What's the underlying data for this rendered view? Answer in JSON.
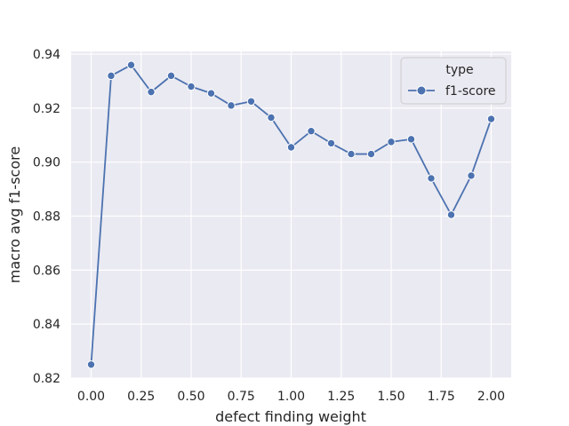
{
  "chart_data": {
    "type": "line",
    "title": "",
    "xlabel": "defect finding weight",
    "ylabel": "macro avg f1-score",
    "xlim": [
      -0.1,
      2.1
    ],
    "ylim": [
      0.82,
      0.941
    ],
    "x_ticks": [
      0.0,
      0.25,
      0.5,
      0.75,
      1.0,
      1.25,
      1.5,
      1.75,
      2.0
    ],
    "x_tick_labels": [
      "0.00",
      "0.25",
      "0.50",
      "0.75",
      "1.00",
      "1.25",
      "1.50",
      "1.75",
      "2.00"
    ],
    "y_ticks": [
      0.82,
      0.84,
      0.86,
      0.88,
      0.9,
      0.92,
      0.94
    ],
    "y_tick_labels": [
      "0.82",
      "0.84",
      "0.86",
      "0.88",
      "0.90",
      "0.92",
      "0.94"
    ],
    "grid": true,
    "legend": {
      "title": "type",
      "placement": "top-right"
    },
    "x": [
      0.0,
      0.1,
      0.2,
      0.3,
      0.4,
      0.5,
      0.6,
      0.7,
      0.8,
      0.9,
      1.0,
      1.1,
      1.2,
      1.3,
      1.4,
      1.5,
      1.6,
      1.7,
      1.8,
      1.9,
      2.0
    ],
    "series": [
      {
        "name": "f1-score",
        "color": "#4c72b0",
        "marker": "circle",
        "values": [
          0.825,
          0.932,
          0.936,
          0.926,
          0.932,
          0.928,
          0.9255,
          0.921,
          0.9225,
          0.9165,
          0.9055,
          0.9115,
          0.907,
          0.903,
          0.903,
          0.9075,
          0.9085,
          0.894,
          0.8805,
          0.895,
          0.916
        ]
      }
    ]
  },
  "style": {
    "plot_background": "#eaeaf2",
    "grid_color": "#ffffff",
    "text_color": "#262626"
  }
}
